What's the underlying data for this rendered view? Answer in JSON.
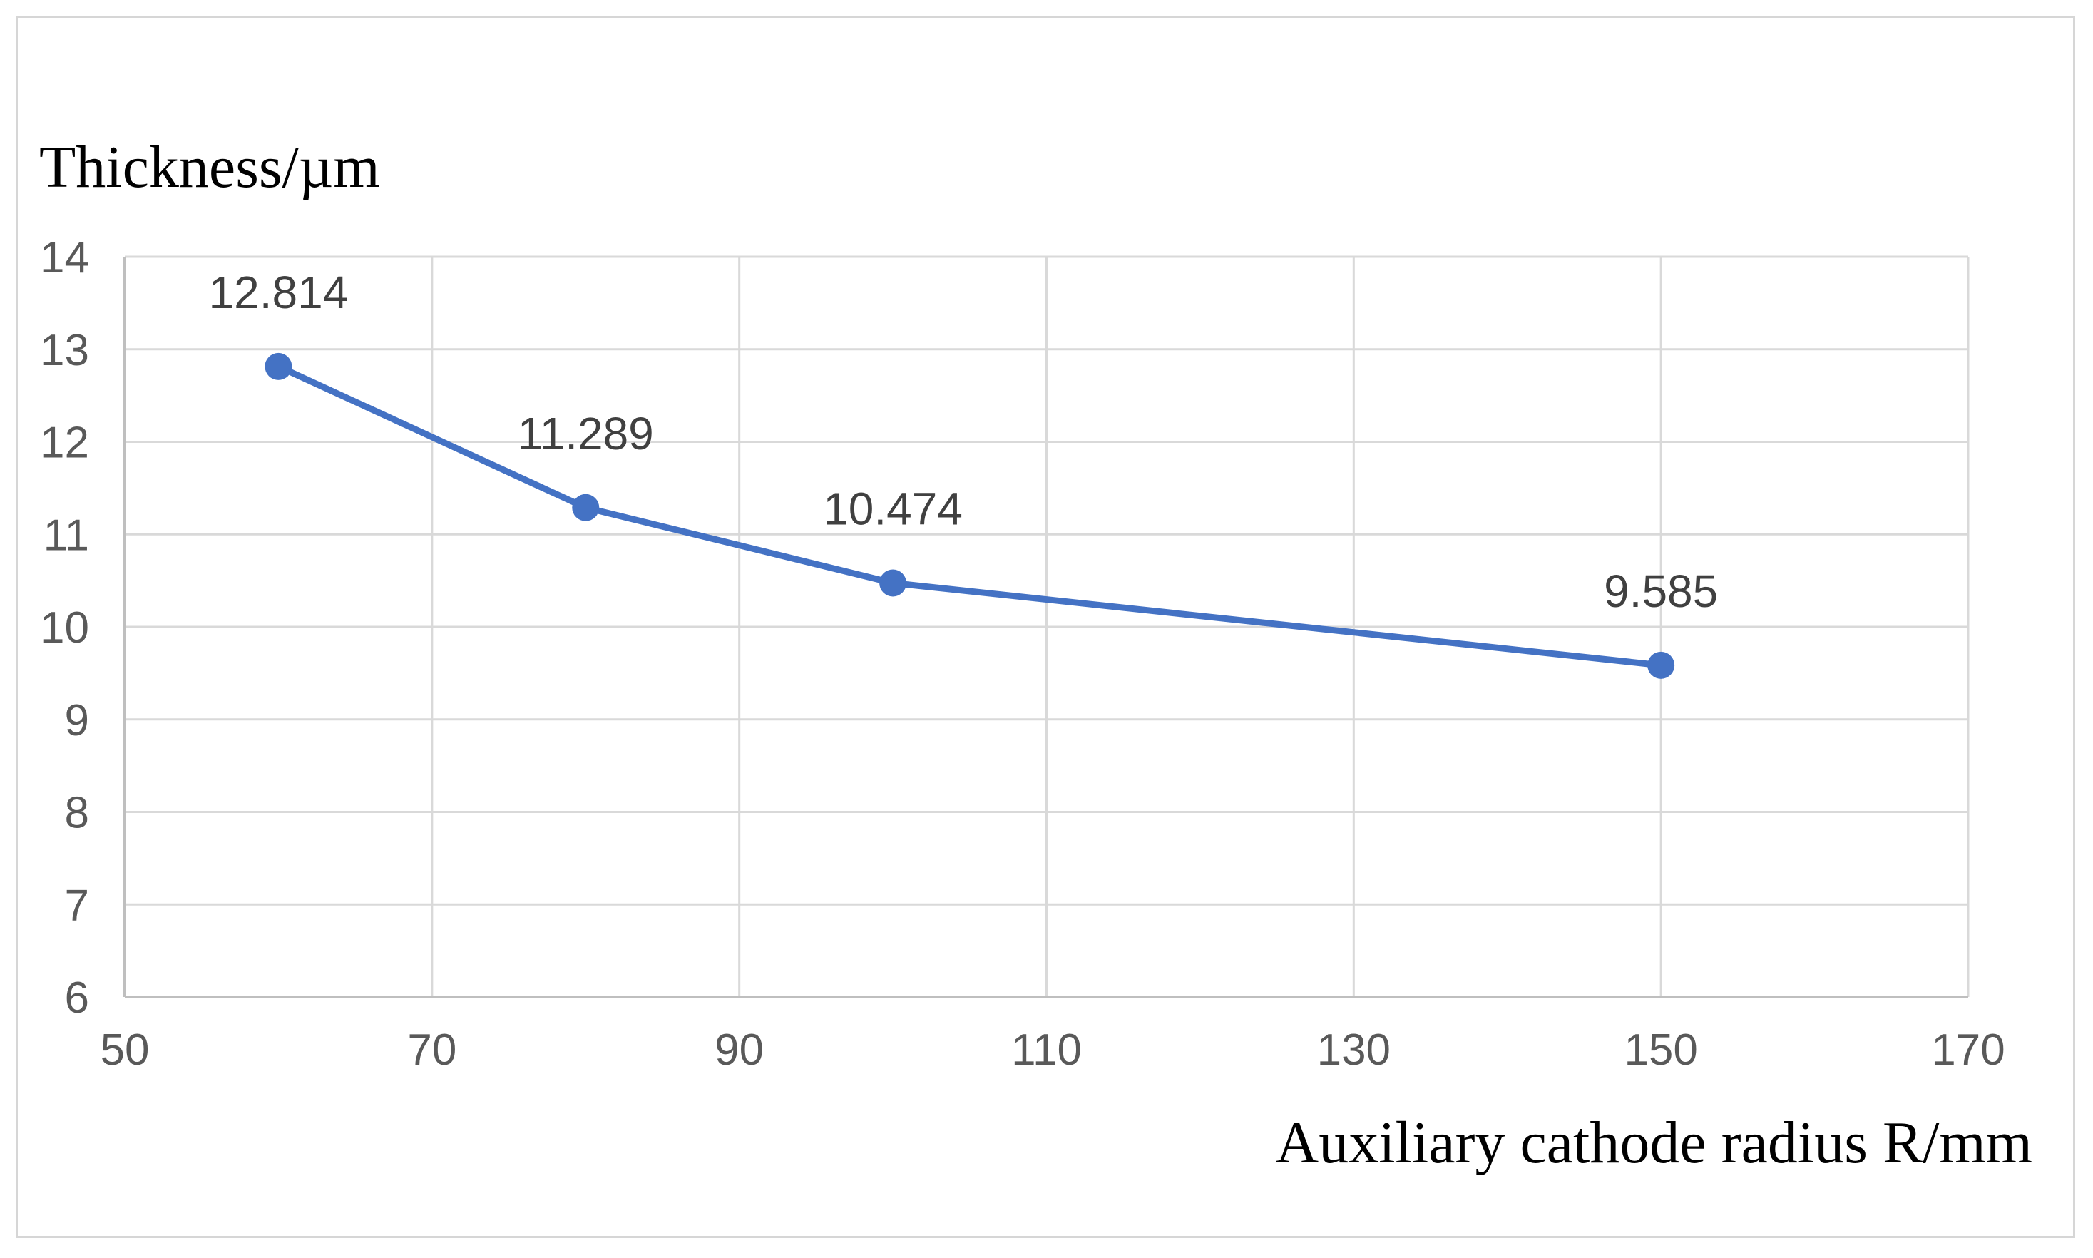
{
  "chart_data": {
    "type": "line",
    "ylabel": "Thickness/µm",
    "xlabel": "Auxiliary cathode radius R/mm",
    "xlim": [
      50,
      170
    ],
    "ylim": [
      6,
      14
    ],
    "x_ticks": [
      50,
      70,
      90,
      110,
      130,
      150,
      170
    ],
    "y_ticks": [
      6,
      7,
      8,
      9,
      10,
      11,
      12,
      13,
      14
    ],
    "grid": true,
    "legend": "none",
    "series": [
      {
        "color": "#4472c4",
        "x": [
          60,
          80,
          100,
          150
        ],
        "y": [
          12.814,
          11.289,
          10.474,
          9.585
        ],
        "data_labels": [
          "12.814",
          "11.289",
          "10.474",
          "9.585"
        ]
      }
    ]
  }
}
